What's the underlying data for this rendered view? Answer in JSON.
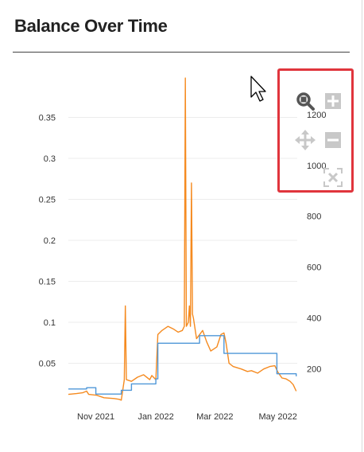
{
  "panel": {
    "title": "Balance Over Time"
  },
  "toolbar": {
    "buttons": [
      {
        "icon": "zoom-icon"
      },
      {
        "icon": "zoom-in-icon"
      },
      {
        "icon": "pan-icon"
      },
      {
        "icon": "zoom-out-icon"
      },
      {
        "icon": "reset-zoom-icon"
      }
    ]
  },
  "colors": {
    "orange_series": "#f58a1f",
    "blue_series": "#4f97d8",
    "highlight": "#e0353d"
  },
  "chart_data": {
    "type": "line",
    "x_tick_labels": [
      "Nov 2021",
      "Jan 2022",
      "Mar 2022",
      "May 2022"
    ],
    "y_left_ticks": [
      "0.35",
      "0.3",
      "0.25",
      "0.2",
      "0.15",
      "0.1",
      "0.05"
    ],
    "y_left_values": [
      0.35,
      0.3,
      0.25,
      0.2,
      0.15,
      0.1,
      0.05
    ],
    "y_right_ticks": [
      "1200",
      "1000",
      "800",
      "600",
      "400",
      "200"
    ],
    "y_right_values": [
      1200,
      1000,
      800,
      600,
      400,
      200
    ],
    "ylim_left": [
      0,
      0.4
    ],
    "ylim_right": [
      60,
      1350
    ],
    "xlim_days": [
      0,
      225
    ],
    "series": [
      {
        "axis": "left",
        "color": "#f58a1f",
        "points": [
          [
            0,
            0.012
          ],
          [
            8,
            0.013
          ],
          [
            14,
            0.014
          ],
          [
            18,
            0.016
          ],
          [
            20,
            0.012
          ],
          [
            28,
            0.011
          ],
          [
            35,
            0.008
          ],
          [
            45,
            0.007
          ],
          [
            50,
            0.006
          ],
          [
            52,
            0.005
          ],
          [
            55,
            0.03
          ],
          [
            56,
            0.12
          ],
          [
            57,
            0.03
          ],
          [
            62,
            0.028
          ],
          [
            68,
            0.033
          ],
          [
            74,
            0.036
          ],
          [
            80,
            0.03
          ],
          [
            82,
            0.035
          ],
          [
            86,
            0.03
          ],
          [
            88,
            0.085
          ],
          [
            92,
            0.09
          ],
          [
            98,
            0.095
          ],
          [
            103,
            0.092
          ],
          [
            108,
            0.088
          ],
          [
            112,
            0.09
          ],
          [
            114,
            0.095
          ],
          [
            115,
            0.398
          ],
          [
            116,
            0.095
          ],
          [
            118,
            0.1
          ],
          [
            119,
            0.12
          ],
          [
            120,
            0.095
          ],
          [
            121,
            0.27
          ],
          [
            122,
            0.11
          ],
          [
            123,
            0.105
          ],
          [
            126,
            0.08
          ],
          [
            132,
            0.09
          ],
          [
            136,
            0.076
          ],
          [
            140,
            0.065
          ],
          [
            146,
            0.07
          ],
          [
            150,
            0.085
          ],
          [
            153,
            0.087
          ],
          [
            155,
            0.075
          ],
          [
            158,
            0.05
          ],
          [
            162,
            0.046
          ],
          [
            170,
            0.043
          ],
          [
            176,
            0.04
          ],
          [
            180,
            0.041
          ],
          [
            186,
            0.038
          ],
          [
            192,
            0.043
          ],
          [
            198,
            0.046
          ],
          [
            203,
            0.047
          ],
          [
            206,
            0.039
          ],
          [
            210,
            0.032
          ],
          [
            214,
            0.031
          ],
          [
            218,
            0.028
          ],
          [
            221,
            0.024
          ],
          [
            224,
            0.016
          ]
        ]
      },
      {
        "axis": "right",
        "color": "#4f97d8",
        "points": [
          [
            0,
            120
          ],
          [
            18,
            120
          ],
          [
            18,
            125
          ],
          [
            27,
            125
          ],
          [
            27,
            100
          ],
          [
            52,
            100
          ],
          [
            52,
            115
          ],
          [
            62,
            115
          ],
          [
            62,
            140
          ],
          [
            86,
            140
          ],
          [
            86,
            160
          ],
          [
            88,
            160
          ],
          [
            88,
            300
          ],
          [
            129,
            300
          ],
          [
            129,
            330
          ],
          [
            153,
            330
          ],
          [
            153,
            260
          ],
          [
            205,
            260
          ],
          [
            205,
            180
          ],
          [
            224,
            180
          ],
          [
            224,
            170
          ]
        ]
      }
    ]
  }
}
